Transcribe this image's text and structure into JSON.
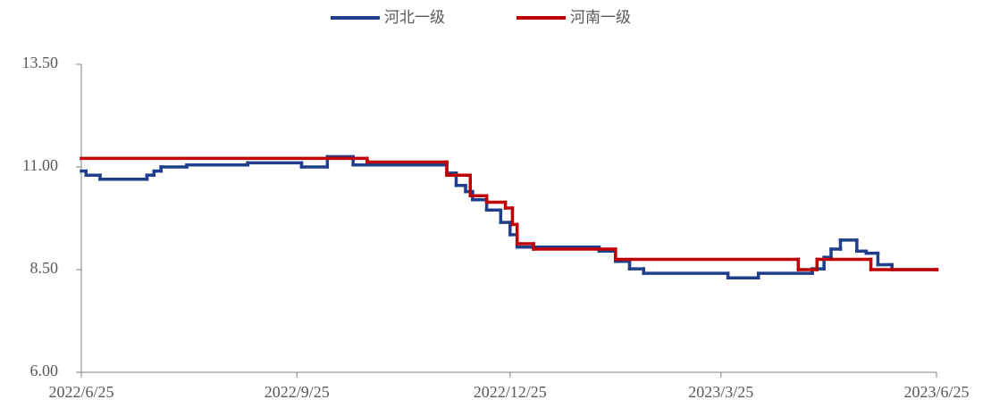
{
  "chart_data": {
    "type": "line",
    "xlim": [
      "2022/6/25",
      "2023/6/25"
    ],
    "xticks": [
      "2022/6/25",
      "2022/9/25",
      "2022/12/25",
      "2023/3/25",
      "2023/6/25"
    ],
    "ylim": [
      6,
      13.5
    ],
    "yticks": [
      {
        "value": 6,
        "label": "6.00"
      },
      {
        "value": 8.5,
        "label": "8.50"
      },
      {
        "value": 11,
        "label": "11.00"
      },
      {
        "value": 13.5,
        "label": "13.50"
      }
    ],
    "legend": "top",
    "series": [
      {
        "name": "河北一级",
        "color": "#1f3f8c",
        "x": [
          "2022/6/25",
          "2022/6/27",
          "2022/7/3",
          "2022/7/23",
          "2022/7/26",
          "2022/7/29",
          "2022/8/9",
          "2022/9/4",
          "2022/9/27",
          "2022/10/8",
          "2022/10/19",
          "2022/11/28",
          "2022/12/2",
          "2022/12/6",
          "2022/12/9",
          "2022/12/15",
          "2022/12/21",
          "2022/12/25",
          "2022/12/28",
          "2023/2/1",
          "2023/2/8",
          "2023/2/14",
          "2023/2/20",
          "2023/3/28",
          "2023/4/10",
          "2023/5/3",
          "2023/5/8",
          "2023/5/11",
          "2023/5/15",
          "2023/5/22",
          "2023/5/26",
          "2023/5/31",
          "2023/6/6",
          "2023/6/25"
        ],
        "values": [
          10.9,
          10.8,
          10.7,
          10.8,
          10.9,
          11.0,
          11.05,
          11.1,
          11.0,
          11.25,
          11.05,
          10.85,
          10.55,
          10.4,
          10.2,
          9.95,
          9.65,
          9.35,
          9.05,
          8.95,
          8.7,
          8.52,
          8.41,
          8.3,
          8.41,
          8.52,
          8.8,
          9.0,
          9.22,
          8.95,
          8.9,
          8.62,
          8.5,
          8.5
        ]
      },
      {
        "name": "河南一级",
        "color": "#c00000",
        "x": [
          "2022/6/25",
          "2022/10/25",
          "2022/11/28",
          "2022/12/8",
          "2022/12/15",
          "2022/12/23",
          "2022/12/26",
          "2022/12/28",
          "2023/1/4",
          "2023/2/8",
          "2023/4/27",
          "2023/5/5",
          "2023/5/28",
          "2023/6/25"
        ],
        "values": [
          11.21,
          11.12,
          10.8,
          10.3,
          10.14,
          10.0,
          9.6,
          9.13,
          9.0,
          8.75,
          8.5,
          8.75,
          8.5,
          8.5
        ]
      }
    ]
  }
}
